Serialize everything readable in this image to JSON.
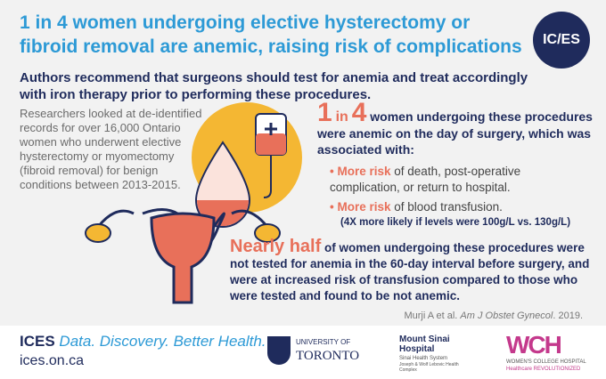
{
  "header": {
    "title": "1 in 4 women undergoing elective hysterectomy or fibroid removal are anemic, raising risk of complications",
    "logo": "IC/ES",
    "subtitle": "Authors recommend that surgeons should test for anemia and treat accordingly with iron therapy prior to performing these procedures."
  },
  "intro": "Researchers looked at de-identified records for over 16,000 Ontario women who underwent elective hysterectomy or myomectomy (fibroid removal) for benign conditions between 2013-2015.",
  "finding1": {
    "highlight": [
      "1",
      "in",
      "4"
    ],
    "text": "women undergoing these procedures were anemic on the day of surgery, which was associated with:",
    "bullets": [
      {
        "highlight": "More risk",
        "text": "of death, post-operative complication, or return to hospital."
      },
      {
        "highlight": "More risk",
        "text": "of blood transfusion."
      }
    ],
    "note": "(4X more likely if levels were 100g/L vs. 130g/L)"
  },
  "finding2": {
    "highlight": "Nearly half",
    "text": "of women undergoing these procedures were not tested for anemia in the 60-day interval before surgery, and were at increased risk of transfusion compared to those who were tested and found to be not anemic."
  },
  "citation": {
    "authors": "Murji A et al.",
    "journal": "Am J Obstet Gynecol",
    "year": ". 2019."
  },
  "footer": {
    "brand": "ICES",
    "tagline": "Data. Discovery. Better Health.",
    "url": "ices.on.ca",
    "partners": [
      {
        "top": "UNIVERSITY OF",
        "name": "TORONTO"
      },
      {
        "top": "Mount Sinai Hospital",
        "name": "Sinai Health System",
        "sub": "Joseph & Wolf Lebovic Health Complex"
      },
      {
        "top": "WCH",
        "name": "WOMEN'S COLLEGE HOSPITAL",
        "sub": "Healthcare REVOLUTIONIZED"
      }
    ]
  }
}
